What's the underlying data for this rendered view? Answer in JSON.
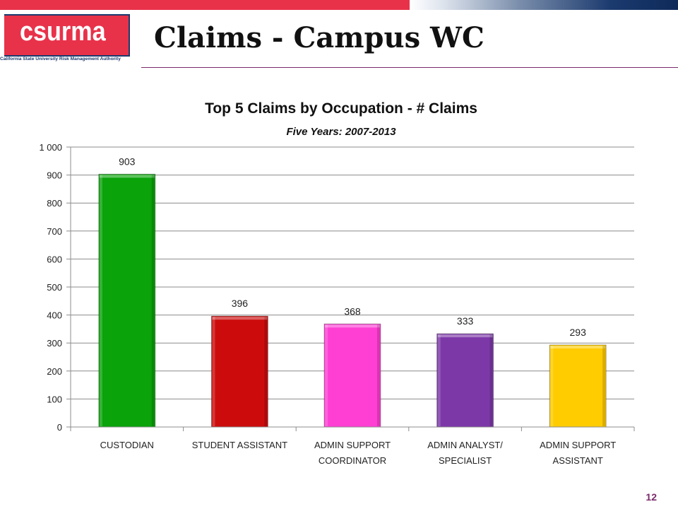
{
  "header": {
    "logo_text": "csurma",
    "logo_subtitle": "California State University Risk Management Authority",
    "title": "Claims - Campus WC"
  },
  "footer": {
    "page_number": "12"
  },
  "colors": {
    "accent_red": "#e8324a",
    "navy": "#1b3a6e",
    "rule": "#7a2a6a"
  },
  "chart_data": {
    "type": "bar",
    "title": "Top 5 Claims by Occupation - # Claims",
    "subtitle": "Five Years: 2007-2013",
    "categories": [
      [
        "CUSTODIAN"
      ],
      [
        "STUDENT ASSISTANT"
      ],
      [
        "ADMIN SUPPORT",
        "COORDINATOR"
      ],
      [
        "ADMIN ANALYST/",
        "SPECIALIST"
      ],
      [
        "ADMIN SUPPORT",
        "ASSISTANT"
      ]
    ],
    "values": [
      903,
      396,
      368,
      333,
      293
    ],
    "data_labels": [
      "903",
      "396",
      "368",
      "333",
      "293"
    ],
    "bar_colors": [
      "#0aa30a",
      "#cc0c0c",
      "#ff3fd4",
      "#7d38a8",
      "#ffcc00"
    ],
    "ylim": [
      0,
      1000
    ],
    "yticks": [
      0,
      100,
      200,
      300,
      400,
      500,
      600,
      700,
      800,
      900,
      1000
    ],
    "ytick_labels": [
      "0",
      "100",
      "200",
      "300",
      "400",
      "500",
      "600",
      "700",
      "800",
      "900",
      "1 000"
    ],
    "grid": true,
    "legend": "none"
  }
}
